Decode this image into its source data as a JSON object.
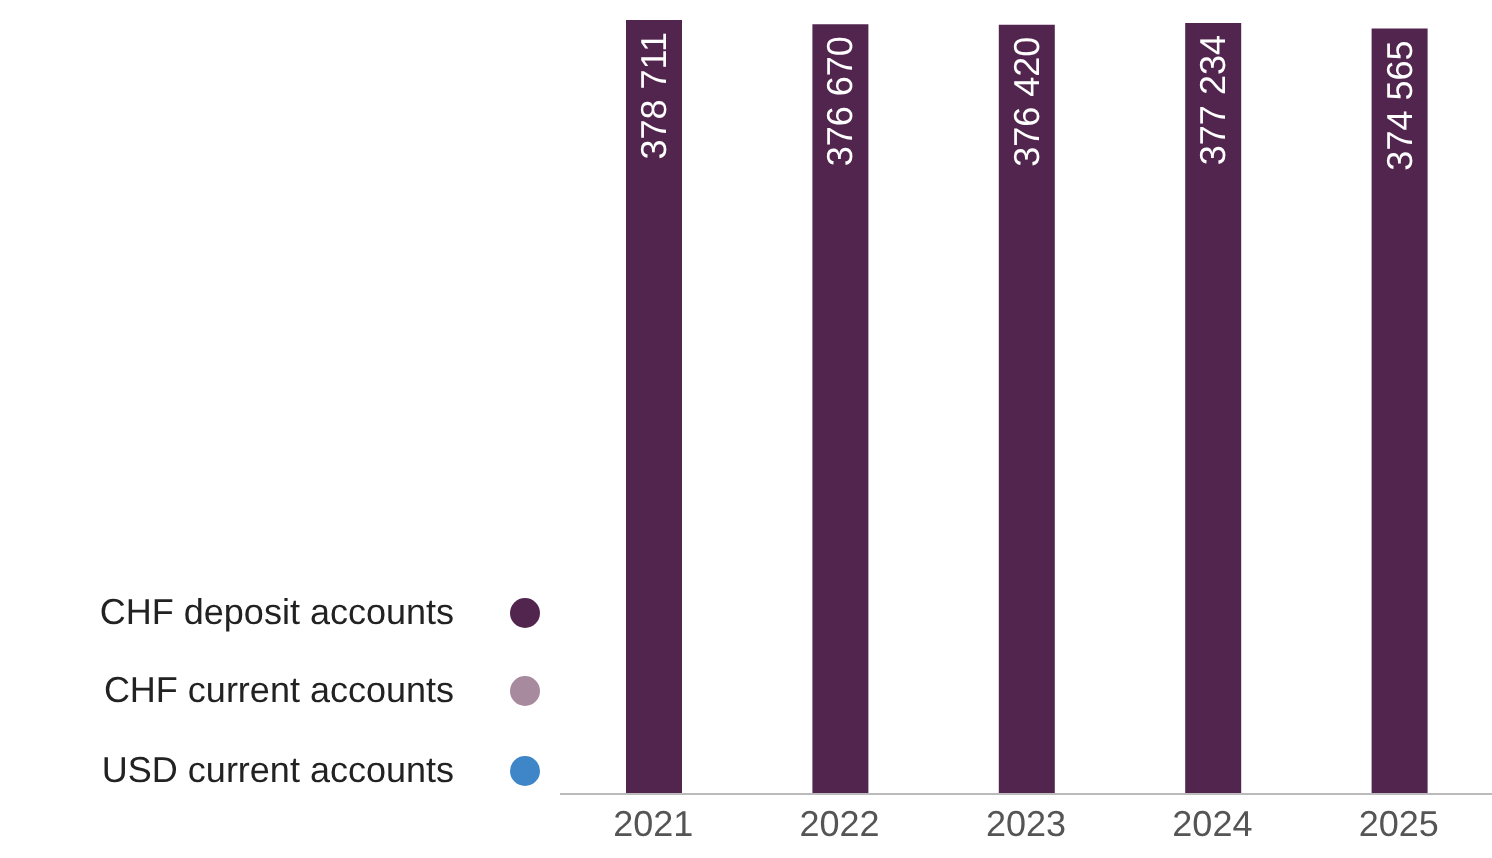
{
  "chart_data": {
    "type": "bar",
    "stacked": true,
    "categories": [
      "2021",
      "2022",
      "2023",
      "2024",
      "2025"
    ],
    "series": [
      {
        "name": "CHF deposit accounts",
        "color": "#52254f",
        "values": [
          378711,
          376670,
          376420,
          377234,
          374565
        ],
        "value_labels": [
          "378 711",
          "376 670",
          "376 420",
          "377 234",
          "374 565"
        ]
      },
      {
        "name": "CHF current accounts",
        "color": "#a88a9f",
        "values": [
          null,
          null,
          null,
          null,
          null
        ]
      },
      {
        "name": "USD current accounts",
        "color": "#3f86c8",
        "values": [
          null,
          null,
          null,
          null,
          null
        ]
      }
    ],
    "legend": "bottom left",
    "grid": false
  }
}
